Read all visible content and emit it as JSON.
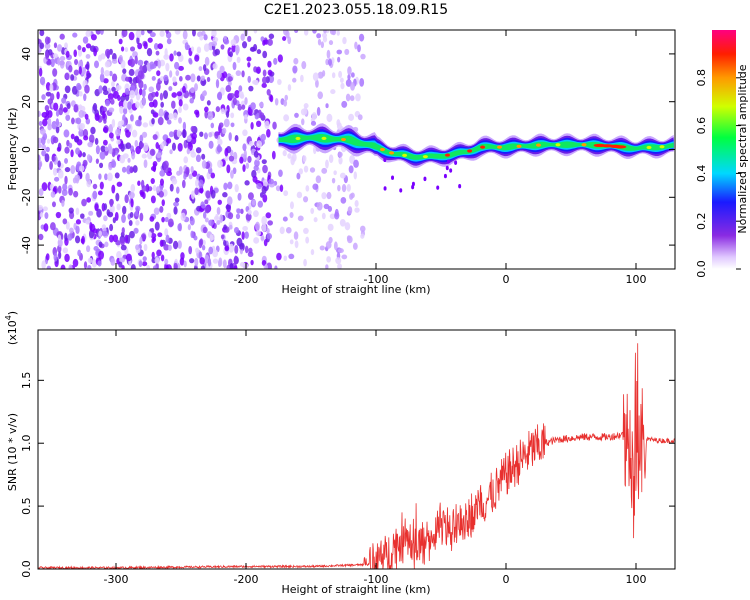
{
  "title": "C2E1.2023.055.18.09.R15",
  "chart_data": [
    {
      "type": "heatmap",
      "xlabel": "Height of straight line (km)",
      "ylabel": "Frequency (Hz)",
      "xlim": [
        -360,
        130
      ],
      "ylim": [
        -50,
        50
      ],
      "xticks": [
        "-300",
        "-200",
        "-100",
        "0",
        "100"
      ],
      "yticks": [
        "-40",
        "-20",
        "0",
        "20",
        "40"
      ],
      "colorbar": {
        "label": "Normalized spectral amplitude",
        "range": [
          0,
          1
        ],
        "ticks": [
          "0.0",
          "0.2",
          "0.4",
          "0.6",
          "0.8"
        ]
      },
      "ridge": {
        "x": [
          -175,
          -150,
          -120,
          -100,
          -85,
          -70,
          -55,
          -40,
          -30,
          -20,
          0,
          30,
          60,
          80,
          90,
          100,
          130
        ],
        "y": [
          4,
          5,
          4,
          1,
          -2,
          -3,
          -3,
          -2,
          -1,
          1,
          1,
          2,
          2,
          1.5,
          1,
          0.5,
          1.5
        ]
      }
    },
    {
      "type": "line",
      "xlabel": "Height of straight line (km)",
      "ylabel": "SNR (10 * v/v)",
      "yscale_label": "(x10",
      "yscale_exp": "4",
      "yscale_close": ")",
      "xlim": [
        -360,
        130
      ],
      "ylim": [
        0,
        1.9
      ],
      "xticks": [
        "-300",
        "-200",
        "-100",
        "0",
        "100"
      ],
      "yticks": [
        "0.0",
        "0.5",
        "1.0",
        "1.5"
      ],
      "series": [
        {
          "color": "#e8302e",
          "x": [
            -360,
            -300,
            -200,
            -150,
            -120,
            -100,
            -90,
            -80,
            -70,
            -60,
            -50,
            -40,
            -30,
            -20,
            -10,
            0,
            10,
            20,
            30,
            40,
            50,
            60,
            70,
            80,
            90,
            95,
            100,
            105,
            110,
            120,
            130
          ],
          "y": [
            0.01,
            0.01,
            0.02,
            0.02,
            0.03,
            0.04,
            0.12,
            0.25,
            0.2,
            0.2,
            0.35,
            0.3,
            0.4,
            0.5,
            0.6,
            0.75,
            0.85,
            0.95,
            1.0,
            1.03,
            1.04,
            1.05,
            1.05,
            1.05,
            1.07,
            1.0,
            1.02,
            1.03,
            1.03,
            1.02,
            1.02
          ]
        }
      ]
    }
  ]
}
